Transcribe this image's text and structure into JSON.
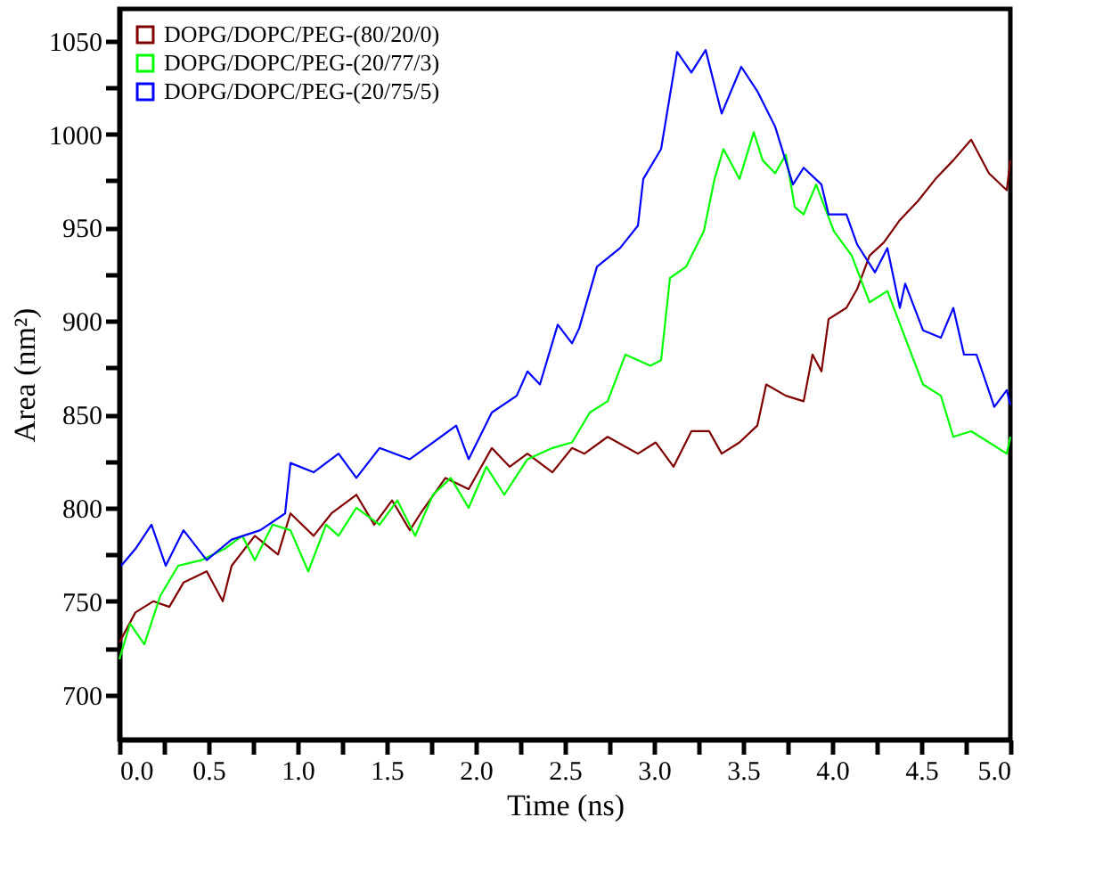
{
  "chart_data": {
    "type": "line",
    "xlabel": "Time (ns)",
    "ylabel": "Area (nm²)",
    "xlim": [
      0,
      5
    ],
    "ylim": [
      676,
      1067
    ],
    "xticks": [
      {
        "value": 0,
        "label": "0.0"
      },
      {
        "value": 0.25,
        "label": null
      },
      {
        "value": 0.5,
        "label": "0.5"
      },
      {
        "value": 0.75,
        "label": null
      },
      {
        "value": 1,
        "label": "1.0"
      },
      {
        "value": 1.25,
        "label": null
      },
      {
        "value": 1.5,
        "label": "1.5"
      },
      {
        "value": 1.75,
        "label": null
      },
      {
        "value": 2,
        "label": "2.0"
      },
      {
        "value": 2.25,
        "label": null
      },
      {
        "value": 2.5,
        "label": "2.5"
      },
      {
        "value": 2.75,
        "label": null
      },
      {
        "value": 3,
        "label": "3.0"
      },
      {
        "value": 3.25,
        "label": null
      },
      {
        "value": 3.5,
        "label": "3.5"
      },
      {
        "value": 3.75,
        "label": null
      },
      {
        "value": 4,
        "label": "4.0"
      },
      {
        "value": 4.25,
        "label": null
      },
      {
        "value": 4.5,
        "label": "4.5"
      },
      {
        "value": 4.75,
        "label": null
      },
      {
        "value": 5,
        "label": "5.0"
      }
    ],
    "yticks": [
      700,
      {
        "value": 725,
        "label": null
      },
      750,
      {
        "value": 775,
        "label": null
      },
      800,
      {
        "value": 825,
        "label": null
      },
      850,
      {
        "value": 875,
        "label": null
      },
      900,
      {
        "value": 925,
        "label": null
      },
      950,
      {
        "value": 975,
        "label": null
      },
      1000,
      {
        "value": 1025,
        "label": null
      },
      1050
    ],
    "grid": false,
    "legend": "top left",
    "marker": "none",
    "line_style": "solid",
    "series": [
      {
        "name": "DOPG/DOPC/PEG-(80/20/0)",
        "color": "#800000",
        "x": [
          0,
          0.09,
          0.19,
          0.28,
          0.36,
          0.49,
          0.58,
          0.63,
          0.76,
          0.89,
          0.96,
          1.09,
          1.19,
          1.33,
          1.43,
          1.53,
          1.63,
          1.69,
          1.83,
          1.96,
          2.09,
          2.19,
          2.29,
          2.43,
          2.54,
          2.61,
          2.74,
          2.91,
          3.01,
          3.11,
          3.21,
          3.31,
          3.38,
          3.48,
          3.58,
          3.63,
          3.74,
          3.84,
          3.89,
          3.94,
          3.98,
          4.08,
          4.14,
          4.21,
          4.29,
          4.38,
          4.48,
          4.58,
          4.68,
          4.78,
          4.88,
          4.98,
          5.0
        ],
        "values": [
          728,
          744,
          750,
          747,
          760,
          766,
          750,
          769,
          785,
          775,
          797,
          785,
          797,
          807,
          791,
          804,
          788,
          797,
          816,
          810,
          832,
          822,
          829,
          819,
          832,
          829,
          838,
          829,
          835,
          822,
          841,
          841,
          829,
          835,
          844,
          866,
          860,
          857,
          882,
          873,
          901,
          907,
          917,
          935,
          942,
          954,
          964,
          976,
          986,
          997,
          979,
          970,
          986
        ]
      },
      {
        "name": "DOPG/DOPC/PEG-(20/77/3)",
        "color": "#00ff00",
        "x": [
          0,
          0.06,
          0.14,
          0.23,
          0.33,
          0.46,
          0.59,
          0.69,
          0.76,
          0.86,
          0.96,
          1.06,
          1.16,
          1.23,
          1.33,
          1.46,
          1.56,
          1.66,
          1.76,
          1.86,
          1.96,
          2.06,
          2.16,
          2.29,
          2.43,
          2.54,
          2.64,
          2.74,
          2.84,
          2.98,
          3.04,
          3.09,
          3.18,
          3.28,
          3.34,
          3.39,
          3.48,
          3.56,
          3.61,
          3.68,
          3.74,
          3.79,
          3.84,
          3.91,
          4.01,
          4.11,
          4.21,
          4.31,
          4.41,
          4.51,
          4.61,
          4.68,
          4.78,
          4.88,
          4.98,
          5.0
        ],
        "values": [
          719,
          738,
          727,
          753,
          769,
          772,
          778,
          785,
          772,
          791,
          788,
          766,
          791,
          785,
          800,
          791,
          804,
          785,
          807,
          816,
          800,
          822,
          807,
          826,
          832,
          835,
          851,
          857,
          882,
          876,
          879,
          923,
          929,
          948,
          976,
          992,
          976,
          1001,
          986,
          979,
          989,
          961,
          957,
          973,
          948,
          935,
          910,
          916,
          891,
          866,
          860,
          838,
          841,
          835,
          829,
          838
        ]
      },
      {
        "name": "DOPG/DOPC/PEG-(20/75/5)",
        "color": "#0000ff",
        "x": [
          0.01,
          0.09,
          0.18,
          0.26,
          0.36,
          0.49,
          0.63,
          0.79,
          0.93,
          0.96,
          1.09,
          1.23,
          1.33,
          1.46,
          1.63,
          1.76,
          1.89,
          1.96,
          2.09,
          2.23,
          2.29,
          2.36,
          2.46,
          2.54,
          2.58,
          2.68,
          2.81,
          2.91,
          2.94,
          3.04,
          3.13,
          3.21,
          3.29,
          3.38,
          3.49,
          3.58,
          3.68,
          3.78,
          3.84,
          3.94,
          3.98,
          4.08,
          4.14,
          4.24,
          4.31,
          4.38,
          4.41,
          4.51,
          4.61,
          4.68,
          4.74,
          4.81,
          4.91,
          4.98,
          5.0
        ],
        "values": [
          769,
          778,
          791,
          769,
          788,
          772,
          783,
          788,
          797,
          824,
          819,
          829,
          816,
          832,
          826,
          835,
          844,
          826,
          851,
          860,
          873,
          866,
          898,
          888,
          896,
          929,
          939,
          951,
          976,
          992,
          1044,
          1033,
          1045,
          1011,
          1036,
          1023,
          1004,
          973,
          982,
          973,
          957,
          957,
          941,
          926,
          939,
          907,
          920,
          895,
          891,
          907,
          882,
          882,
          854,
          863,
          855
        ]
      }
    ]
  }
}
